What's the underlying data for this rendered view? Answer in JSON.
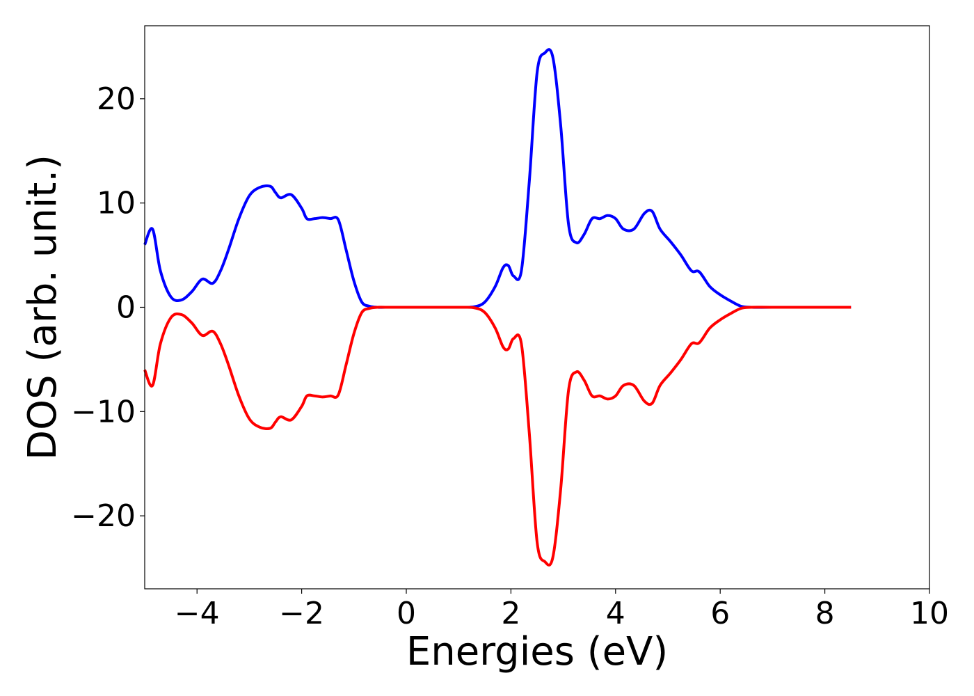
{
  "chart_data": {
    "type": "line",
    "title": "",
    "xlabel": "Energies (eV)",
    "ylabel": "DOS (arb. unit.)",
    "xlim": [
      -5,
      10
    ],
    "ylim": [
      -27,
      27
    ],
    "grid": false,
    "legend": "none",
    "x_ticks": [
      -4,
      -2,
      0,
      2,
      4,
      6,
      8,
      10
    ],
    "x_tick_labels": [
      "−4",
      "−2",
      "0",
      "2",
      "4",
      "6",
      "8",
      "10"
    ],
    "y_ticks": [
      20,
      10,
      0,
      -10,
      -20
    ],
    "y_tick_labels": [
      "20",
      "10",
      "0",
      "−10",
      "−20"
    ],
    "series": [
      {
        "color": "#0000ff",
        "x": [
          -5.0,
          -4.85,
          -4.7,
          -4.5,
          -4.3,
          -4.1,
          -3.9,
          -3.7,
          -3.55,
          -3.4,
          -3.2,
          -3.0,
          -2.8,
          -2.6,
          -2.5,
          -2.4,
          -2.2,
          -2.0,
          -1.9,
          -1.75,
          -1.6,
          -1.45,
          -1.3,
          -1.15,
          -1.0,
          -0.85,
          -0.7,
          -0.55,
          -0.4,
          0.0,
          1.0,
          1.3,
          1.5,
          1.7,
          1.85,
          1.95,
          2.05,
          2.2,
          2.35,
          2.5,
          2.65,
          2.8,
          2.95,
          3.1,
          3.25,
          3.4,
          3.55,
          3.7,
          3.85,
          4.0,
          4.15,
          4.35,
          4.55,
          4.7,
          4.85,
          5.05,
          5.25,
          5.45,
          5.6,
          5.8,
          6.0,
          6.2,
          6.4,
          6.6,
          7.0,
          8.0,
          8.5
        ],
        "y": [
          6.0,
          7.5,
          3.5,
          1.0,
          0.7,
          1.5,
          2.7,
          2.3,
          3.5,
          5.5,
          8.5,
          10.7,
          11.5,
          11.6,
          11.0,
          10.5,
          10.8,
          9.5,
          8.5,
          8.5,
          8.6,
          8.5,
          8.4,
          5.5,
          2.5,
          0.5,
          0.1,
          0.0,
          0.0,
          0.0,
          0.0,
          0.05,
          0.5,
          2.0,
          3.8,
          4.0,
          3.0,
          3.5,
          12.0,
          22.5,
          24.4,
          24.0,
          17.5,
          8.0,
          6.2,
          7.0,
          8.5,
          8.5,
          8.8,
          8.5,
          7.5,
          7.5,
          9.0,
          9.2,
          7.5,
          6.3,
          5.0,
          3.5,
          3.4,
          2.0,
          1.2,
          0.6,
          0.1,
          0.0,
          0.0,
          0.0,
          0.0
        ]
      },
      {
        "color": "#ff0000",
        "x": [
          -5.0,
          -4.85,
          -4.7,
          -4.5,
          -4.3,
          -4.1,
          -3.9,
          -3.7,
          -3.55,
          -3.4,
          -3.2,
          -3.0,
          -2.8,
          -2.6,
          -2.5,
          -2.4,
          -2.2,
          -2.0,
          -1.9,
          -1.75,
          -1.6,
          -1.45,
          -1.3,
          -1.15,
          -1.0,
          -0.85,
          -0.7,
          -0.55,
          -0.4,
          0.0,
          1.0,
          1.3,
          1.5,
          1.7,
          1.85,
          1.95,
          2.05,
          2.2,
          2.35,
          2.5,
          2.65,
          2.8,
          2.95,
          3.1,
          3.25,
          3.4,
          3.55,
          3.7,
          3.85,
          4.0,
          4.15,
          4.35,
          4.55,
          4.7,
          4.85,
          5.05,
          5.25,
          5.45,
          5.6,
          5.8,
          6.0,
          6.2,
          6.4,
          6.6,
          7.0,
          8.0,
          8.5
        ],
        "y": [
          -6.0,
          -7.5,
          -3.5,
          -1.0,
          -0.7,
          -1.5,
          -2.7,
          -2.3,
          -3.5,
          -5.5,
          -8.5,
          -10.7,
          -11.5,
          -11.6,
          -11.0,
          -10.5,
          -10.8,
          -9.5,
          -8.5,
          -8.5,
          -8.6,
          -8.5,
          -8.4,
          -5.5,
          -2.5,
          -0.5,
          -0.1,
          0.0,
          0.0,
          0.0,
          0.0,
          -0.05,
          -0.5,
          -2.0,
          -3.8,
          -4.0,
          -3.0,
          -3.5,
          -12.0,
          -22.5,
          -24.4,
          -24.0,
          -17.5,
          -8.0,
          -6.2,
          -7.0,
          -8.5,
          -8.5,
          -8.8,
          -8.5,
          -7.5,
          -7.5,
          -9.0,
          -9.2,
          -7.5,
          -6.3,
          -5.0,
          -3.5,
          -3.4,
          -2.0,
          -1.2,
          -0.6,
          -0.1,
          0.0,
          0.0,
          0.0,
          0.0
        ]
      }
    ]
  }
}
